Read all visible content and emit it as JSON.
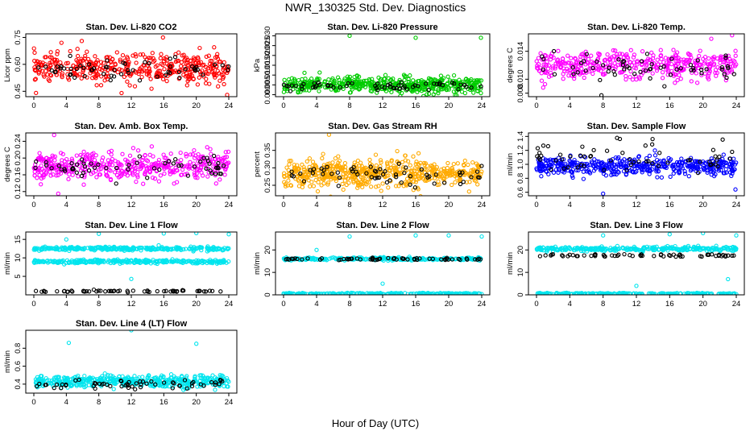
{
  "figure": {
    "title": "NWR_130325  Std. Dev. Diagnostics",
    "xlabel": "Hour of Day (UTC)"
  },
  "chart_data": [
    {
      "type": "scatter",
      "title": "Stan. Dev. Li-820 CO2",
      "ylabel": "Licor ppm",
      "xlim": [
        0,
        24
      ],
      "xticks": [
        0,
        4,
        8,
        12,
        16,
        20,
        24
      ],
      "yticks": [
        "0.45",
        "0.60",
        "0.75"
      ],
      "yvals": [
        0.45,
        0.6,
        0.75
      ],
      "ylim": [
        0.42,
        0.77
      ],
      "series": [
        {
          "color": "#ff0000",
          "center": 0.58,
          "spread": 0.05,
          "count": 420,
          "outliers": [
            [
              5.9,
              0.73
            ],
            [
              15.9,
              0.75
            ],
            [
              23.8,
              0.43
            ],
            [
              10.8,
              0.44
            ],
            [
              3.4,
              0.72
            ]
          ]
        },
        {
          "color": "#000000",
          "center": 0.57,
          "spread": 0.04,
          "count": 60,
          "outliers": []
        }
      ]
    },
    {
      "type": "scatter",
      "title": "Stan. Dev. Li-820 Pressure",
      "ylabel": "kPa",
      "xlim": [
        0,
        24
      ],
      "xticks": [
        0,
        4,
        8,
        12,
        16,
        20,
        24
      ],
      "yticks": [
        "0.000",
        "0.005",
        "0.010",
        "0.015",
        "0.020",
        "0.025",
        "0.030"
      ],
      "yvals": [
        0,
        0.005,
        0.01,
        0.015,
        0.02,
        0.025,
        0.03
      ],
      "ylim": [
        -0.001,
        0.031
      ],
      "series": [
        {
          "color": "#00cc00",
          "center": 0.005,
          "spread": 0.0025,
          "count": 520,
          "outliers": [
            [
              8,
              0.03
            ],
            [
              16,
              0.029
            ],
            [
              23.9,
              0.029
            ]
          ]
        },
        {
          "color": "#000000",
          "center": 0.004,
          "spread": 0.0015,
          "count": 60,
          "outliers": []
        }
      ]
    },
    {
      "type": "scatter",
      "title": "Stan. Dev. Li-820 Temp.",
      "ylabel": "degrees C",
      "xlim": [
        0,
        24
      ],
      "xticks": [
        0,
        4,
        8,
        12,
        16,
        20,
        24
      ],
      "yticks": [
        "0.008",
        "0.010",
        "0.014"
      ],
      "yvals": [
        0.008,
        0.01,
        0.014
      ],
      "ylim": [
        0.0075,
        0.0165
      ],
      "series": [
        {
          "color": "#ff00ff",
          "center": 0.012,
          "spread": 0.0012,
          "count": 420,
          "outliers": [
            [
              23.5,
              0.0163
            ],
            [
              21.0,
              0.0158
            ]
          ]
        },
        {
          "color": "#000000",
          "center": 0.0118,
          "spread": 0.0012,
          "count": 60,
          "outliers": [
            [
              7.8,
              0.0077
            ]
          ]
        }
      ]
    },
    {
      "type": "scatter",
      "title": "Stan. Dev. Amb. Box Temp.",
      "ylabel": "degrees C",
      "xlim": [
        0,
        24
      ],
      "xticks": [
        0,
        4,
        8,
        12,
        16,
        20,
        24
      ],
      "yticks": [
        "0.12",
        "0.16",
        "0.20",
        "0.24"
      ],
      "yvals": [
        0.12,
        0.16,
        0.2,
        0.24
      ],
      "ylim": [
        0.11,
        0.26
      ],
      "series": [
        {
          "color": "#ff00ff",
          "center": 0.18,
          "spread": 0.022,
          "count": 440,
          "outliers": [
            [
              2.5,
              0.255
            ],
            [
              3.0,
              0.115
            ]
          ]
        },
        {
          "color": "#000000",
          "center": 0.175,
          "spread": 0.015,
          "count": 60,
          "outliers": []
        }
      ]
    },
    {
      "type": "scatter",
      "title": "Stan. Dev. Gas Stream RH",
      "ylabel": "percent",
      "xlim": [
        0,
        24
      ],
      "xticks": [
        0,
        4,
        8,
        12,
        16,
        20,
        24
      ],
      "yticks": [
        "0.25",
        "0.30",
        "0.35"
      ],
      "yvals": [
        0.25,
        0.3,
        0.35
      ],
      "ylim": [
        0.22,
        0.4
      ],
      "series": [
        {
          "color": "#ffaa00",
          "center": 0.285,
          "spread": 0.025,
          "count": 560,
          "outliers": [
            [
              5.5,
              0.395
            ]
          ]
        },
        {
          "color": "#000000",
          "center": 0.28,
          "spread": 0.015,
          "count": 60,
          "outliers": []
        }
      ]
    },
    {
      "type": "scatter",
      "title": "Stan. Dev. Sample Flow",
      "ylabel": "ml/min",
      "xlim": [
        0,
        24
      ],
      "xticks": [
        0,
        4,
        8,
        12,
        16,
        20,
        24
      ],
      "yticks": [
        "0.6",
        "0.8",
        "1.0",
        "1.2",
        "1.4"
      ],
      "yvals": [
        0.6,
        0.8,
        1.0,
        1.2,
        1.4
      ],
      "ylim": [
        0.55,
        1.45
      ],
      "series": [
        {
          "color": "#0000ff",
          "center": 0.97,
          "spread": 0.08,
          "count": 460,
          "outliers": [
            [
              8,
              0.58
            ],
            [
              23.9,
              0.64
            ]
          ]
        },
        {
          "color": "#000000",
          "center": 1.1,
          "spread": 0.15,
          "count": 60,
          "outliers": []
        }
      ]
    },
    {
      "type": "scatter",
      "title": "Stan. Dev. Line 1 Flow",
      "ylabel": "ml/min",
      "xlim": [
        0,
        24
      ],
      "xticks": [
        0,
        4,
        8,
        12,
        16,
        20,
        24
      ],
      "yticks": [
        "5",
        "10",
        "15"
      ],
      "yvals": [
        5,
        10,
        15
      ],
      "ylim": [
        0,
        17
      ],
      "series": [
        {
          "color": "#00e5ee",
          "center": 12.5,
          "spread": 0.3,
          "count": 300,
          "outliers": [
            [
              4,
              15
            ],
            [
              8,
              16.5
            ],
            [
              16,
              16.6
            ],
            [
              20,
              16.7
            ],
            [
              12,
              4.3
            ],
            [
              24,
              16.4
            ]
          ]
        },
        {
          "color": "#00e5ee",
          "center": 9,
          "spread": 0.3,
          "count": 300,
          "outliers": []
        },
        {
          "color": "#000000",
          "center": 1,
          "spread": 0.15,
          "count": 60,
          "outliers": []
        }
      ]
    },
    {
      "type": "scatter",
      "title": "Stan. Dev. Line 2 Flow",
      "ylabel": "ml/min",
      "xlim": [
        0,
        24
      ],
      "xticks": [
        0,
        4,
        8,
        12,
        16,
        20,
        24
      ],
      "yticks": [
        "0",
        "10",
        "20"
      ],
      "yvals": [
        0,
        10,
        20
      ],
      "ylim": [
        0,
        28
      ],
      "series": [
        {
          "color": "#00e5ee",
          "center": 16,
          "spread": 0.4,
          "count": 300,
          "outliers": [
            [
              8,
              26
            ],
            [
              16,
              26.5
            ],
            [
              20,
              26.5
            ],
            [
              24,
              26
            ],
            [
              4,
              20
            ],
            [
              12,
              5
            ]
          ]
        },
        {
          "color": "#00e5ee",
          "center": 0.5,
          "spread": 0.2,
          "count": 250,
          "outliers": []
        },
        {
          "color": "#000000",
          "center": 16,
          "spread": 0.3,
          "count": 60,
          "outliers": []
        }
      ]
    },
    {
      "type": "scatter",
      "title": "Stan. Dev. Line 3 Flow",
      "ylabel": "ml/min",
      "xlim": [
        0,
        24
      ],
      "xticks": [
        0,
        4,
        8,
        12,
        16,
        20,
        24
      ],
      "yticks": [
        "0",
        "10",
        "20"
      ],
      "yvals": [
        0,
        10,
        20
      ],
      "ylim": [
        0,
        28
      ],
      "series": [
        {
          "color": "#00e5ee",
          "center": 20.5,
          "spread": 0.6,
          "count": 300,
          "outliers": [
            [
              8,
              26.5
            ],
            [
              16,
              27
            ],
            [
              20,
              27.5
            ],
            [
              24,
              26.5
            ],
            [
              12,
              4
            ],
            [
              23,
              7
            ]
          ]
        },
        {
          "color": "#00e5ee",
          "center": 0.5,
          "spread": 0.2,
          "count": 250,
          "outliers": []
        },
        {
          "color": "#000000",
          "center": 17.5,
          "spread": 0.4,
          "count": 60,
          "outliers": []
        }
      ]
    },
    {
      "type": "scatter",
      "title": "Stan. Dev. Line 4 (LT) Flow",
      "ylabel": "ml/min",
      "xlim": [
        0,
        24
      ],
      "xticks": [
        0,
        4,
        8,
        12,
        16,
        20,
        24
      ],
      "yticks": [
        "0.4",
        "0.6",
        "0.8"
      ],
      "yvals": [
        0.4,
        0.6,
        0.8
      ],
      "ylim": [
        0.3,
        1.0
      ],
      "series": [
        {
          "color": "#00e5ee",
          "center": 0.43,
          "spread": 0.04,
          "count": 460,
          "outliers": [
            [
              4.3,
              0.86
            ],
            [
              12,
              1.0
            ],
            [
              20,
              0.85
            ]
          ]
        },
        {
          "color": "#000000",
          "center": 0.4,
          "spread": 0.03,
          "count": 60,
          "outliers": []
        }
      ]
    }
  ]
}
